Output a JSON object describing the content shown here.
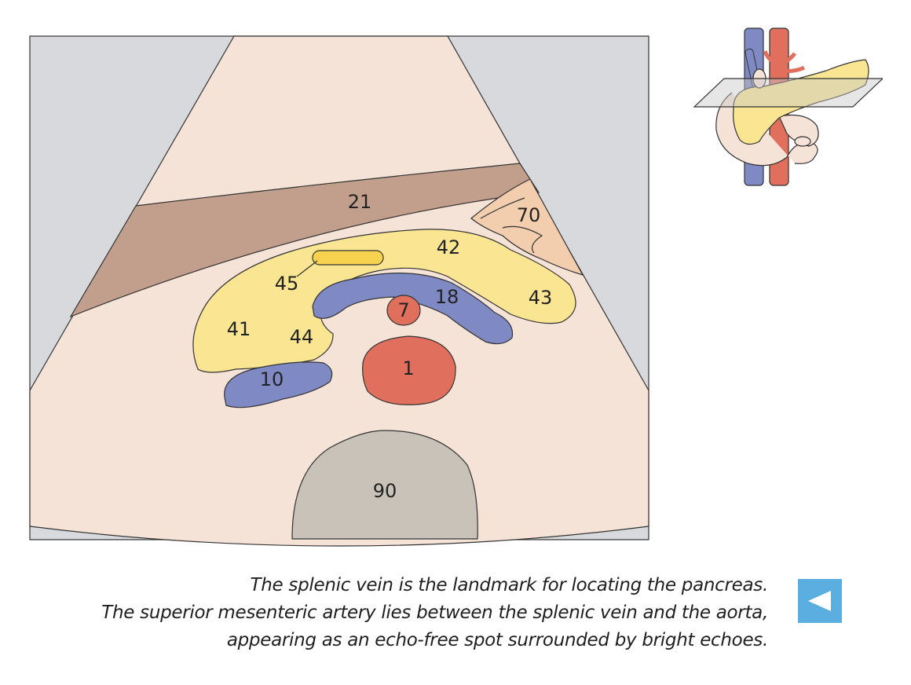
{
  "diagram": {
    "labels": {
      "liver": "21",
      "pancreas_head": "41",
      "pancreas_body": "42",
      "pancreas_tail": "43",
      "uncinate_process": "44",
      "pancreatic_duct": "45",
      "splenic_vein": "18",
      "sma": "7",
      "aorta": "1",
      "ivc": "10",
      "stomach": "70",
      "vertebra": "90"
    },
    "colors": {
      "background": "#d7d9dc",
      "fan": "#f6e3d8",
      "liver": "#c19f8c",
      "pancreas": "#f9e592",
      "duct": "#f6d24e",
      "vein": "#7f89c4",
      "artery": "#e06f5e",
      "stomach": "#f2cdae",
      "vertebra": "#c8c2b8"
    }
  },
  "caption": {
    "line1": "The splenic vein is the landmark for locating the pancreas.",
    "line2": "The superior mesenteric artery lies between the splenic vein and the aorta,",
    "line3": "appearing as an echo-free spot surrounded by bright echoes."
  },
  "back_button": {
    "icon": "triangle-left-icon",
    "color": "#5aaee0"
  }
}
